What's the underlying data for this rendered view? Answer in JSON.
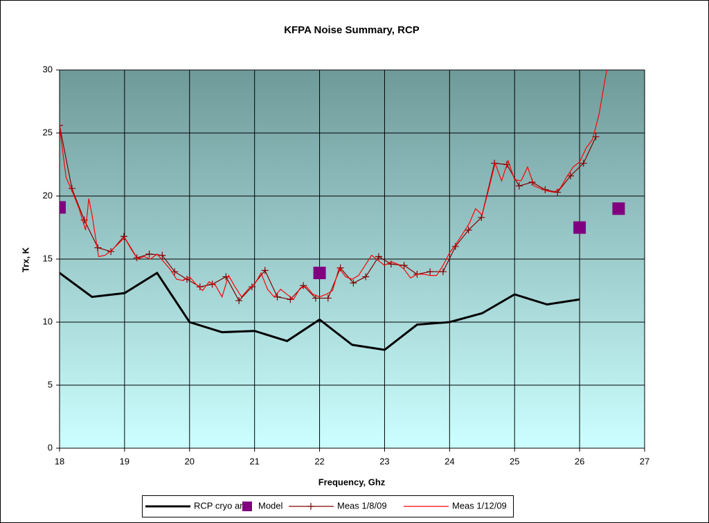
{
  "chart_data": {
    "type": "line",
    "title": "KFPA Noise Summary, RCP",
    "x_label": "Frequency, Ghz",
    "y_label": "Trx, K",
    "xlim": [
      18,
      27
    ],
    "xticks": [
      18,
      19,
      20,
      21,
      22,
      23,
      24,
      25,
      26,
      27
    ],
    "ylim": [
      0,
      30
    ],
    "yticks": [
      0,
      5,
      10,
      15,
      20,
      25,
      30
    ],
    "grid": true,
    "legend": "bottom",
    "series": [
      {
        "name": "RCP cryo amp",
        "color": "#000000",
        "style": "line",
        "x": [
          18,
          18.5,
          19,
          19.5,
          20,
          20.5,
          21,
          21.5,
          22,
          22.5,
          23,
          23.5,
          24,
          24.5,
          25,
          25.5,
          26
        ],
        "values": [
          13.9,
          12.0,
          12.3,
          13.9,
          10.0,
          9.2,
          9.3,
          8.5,
          10.2,
          8.2,
          7.8,
          9.8,
          10.0,
          10.7,
          12.2,
          11.4,
          11.8
        ]
      },
      {
        "name": "Model",
        "color": "#800080",
        "style": "markers",
        "x": [
          18,
          22,
          26,
          26.6
        ],
        "values": [
          19.1,
          13.9,
          17.5,
          19.0
        ]
      },
      {
        "name": "Meas 1/8/09",
        "color": "#800000",
        "style": "line+markers",
        "x": [
          18.0,
          18.19,
          18.38,
          18.59,
          18.79,
          18.99,
          19.19,
          19.38,
          19.58,
          19.77,
          19.96,
          20.16,
          20.35,
          20.56,
          20.76,
          20.96,
          21.16,
          21.35,
          21.55,
          21.75,
          21.94,
          22.13,
          22.32,
          22.52,
          22.71,
          22.91,
          23.1,
          23.3,
          23.5,
          23.7,
          23.9,
          24.09,
          24.29,
          24.49,
          24.69,
          24.88,
          25.07,
          25.27,
          25.47,
          25.66,
          25.86,
          26.06,
          26.25
        ],
        "values": [
          25.6,
          20.6,
          18.1,
          15.9,
          15.6,
          16.8,
          15.1,
          15.4,
          15.3,
          14.0,
          13.4,
          12.8,
          13.0,
          13.6,
          11.7,
          12.8,
          14.1,
          12.0,
          11.8,
          12.9,
          11.9,
          11.9,
          14.3,
          13.1,
          13.6,
          15.2,
          14.6,
          14.5,
          13.8,
          14.0,
          14.0,
          16.0,
          17.3,
          18.3,
          22.6,
          22.5,
          20.8,
          21.1,
          20.5,
          20.3,
          21.6,
          22.6,
          24.7
        ]
      },
      {
        "name": "Meas 1/12/09",
        "color": "#ff0000",
        "style": "line",
        "x": [
          18.0,
          18.1,
          18.2,
          18.3,
          18.4,
          18.45,
          18.5,
          18.6,
          18.7,
          18.8,
          18.9,
          19.0,
          19.1,
          19.2,
          19.3,
          19.4,
          19.5,
          19.6,
          19.7,
          19.8,
          19.9,
          20.0,
          20.1,
          20.2,
          20.3,
          20.4,
          20.5,
          20.6,
          20.7,
          20.8,
          20.9,
          21.0,
          21.1,
          21.2,
          21.3,
          21.4,
          21.5,
          21.6,
          21.7,
          21.8,
          21.9,
          22.0,
          22.1,
          22.2,
          22.3,
          22.4,
          22.5,
          22.6,
          22.7,
          22.8,
          22.9,
          23.0,
          23.1,
          23.2,
          23.3,
          23.4,
          23.5,
          23.6,
          23.7,
          23.8,
          23.9,
          24.0,
          24.1,
          24.2,
          24.3,
          24.4,
          24.5,
          24.6,
          24.7,
          24.8,
          24.9,
          25.0,
          25.1,
          25.2,
          25.3,
          25.4,
          25.5,
          25.6,
          25.7,
          25.8,
          25.9,
          26.0,
          26.1,
          26.2,
          26.3,
          26.4,
          26.45
        ],
        "values": [
          25.5,
          21.5,
          20.3,
          19.0,
          17.3,
          19.8,
          18.5,
          15.2,
          15.3,
          15.7,
          16.2,
          16.7,
          15.8,
          15.0,
          15.2,
          15.0,
          15.4,
          14.8,
          14.2,
          13.4,
          13.3,
          13.6,
          13.0,
          12.5,
          13.2,
          12.9,
          12.0,
          13.7,
          12.8,
          12.0,
          12.6,
          13.0,
          13.9,
          12.6,
          12.0,
          12.6,
          12.2,
          11.8,
          12.7,
          12.8,
          12.2,
          12.0,
          12.2,
          12.5,
          14.3,
          13.6,
          13.4,
          13.7,
          14.5,
          15.3,
          14.9,
          14.5,
          14.8,
          14.6,
          14.2,
          13.5,
          13.8,
          13.8,
          13.7,
          13.7,
          14.5,
          15.5,
          16.2,
          17.0,
          17.8,
          19.0,
          18.5,
          20.5,
          22.6,
          21.2,
          22.8,
          21.3,
          21.2,
          22.3,
          20.8,
          20.6,
          20.4,
          20.3,
          20.6,
          21.5,
          22.3,
          22.7,
          23.8,
          24.5,
          26.5,
          29.5,
          30.8
        ]
      }
    ]
  }
}
